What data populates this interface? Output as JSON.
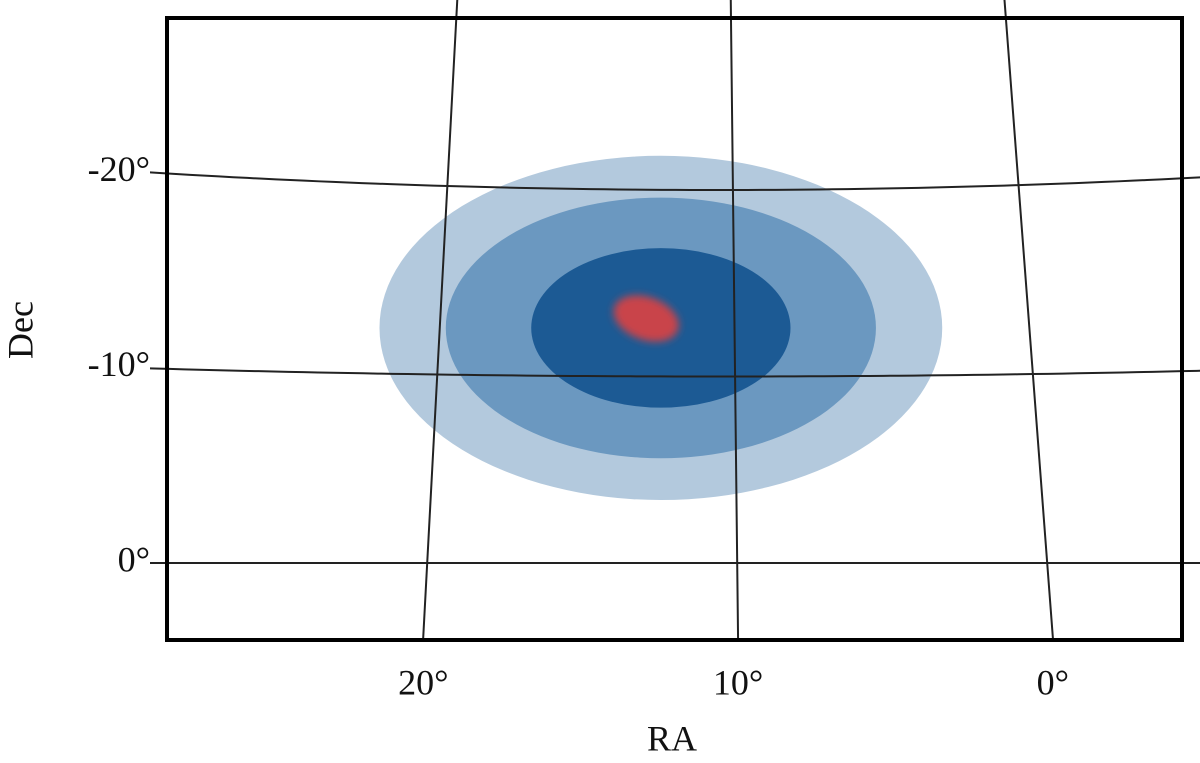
{
  "chart_data": {
    "type": "sky-map",
    "xlabel": "RA",
    "ylabel": "Dec",
    "xticks": [
      {
        "value": 20,
        "label": "20°"
      },
      {
        "value": 10,
        "label": "10°"
      },
      {
        "value": 0,
        "label": "0°"
      }
    ],
    "yticks": [
      {
        "value": -20,
        "label": "-20°"
      },
      {
        "value": -10,
        "label": "-10°"
      },
      {
        "value": 0,
        "label": "0°"
      }
    ],
    "grid": true,
    "regions": [
      {
        "color": "#b3c9dd",
        "center": [
          12.5,
          -12.6
        ],
        "size": [
          19.1,
          17.7
        ]
      },
      {
        "color": "#6b98c0",
        "center": [
          12.5,
          -12.6
        ],
        "size": [
          14.6,
          13.4
        ]
      },
      {
        "color": "#1c5a94",
        "center": [
          12.5,
          -12.6
        ],
        "size": [
          8.8,
          8.2
        ]
      }
    ],
    "samples": {
      "color": "#e8413c",
      "center": [
        13.0,
        -13.1
      ],
      "size": [
        2.3,
        2.2
      ]
    }
  }
}
